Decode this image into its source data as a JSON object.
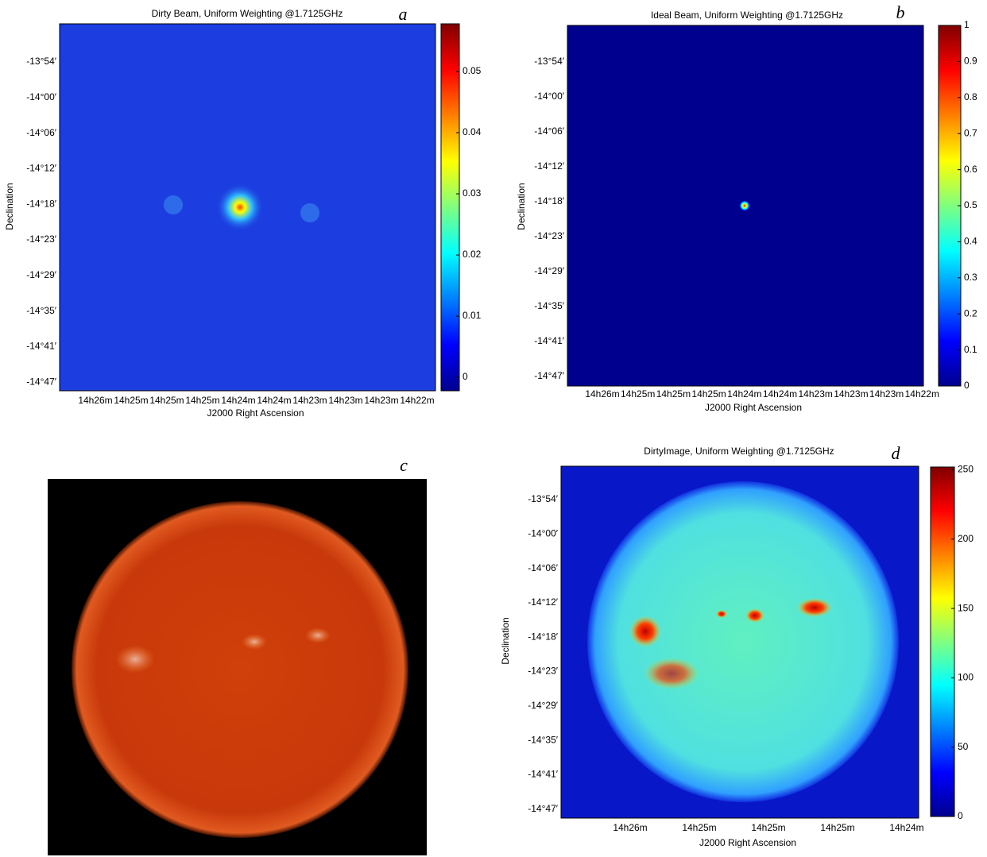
{
  "chart_data": [
    {
      "type": "heatmap",
      "panel_label": "a",
      "title": "Dirty Beam, Uniform Weighting @1.7125GHz",
      "xlabel": "J2000 Right Ascension",
      "ylabel": "Declination",
      "xtick_labels": [
        "14h26m",
        "14h25m",
        "14h25m",
        "14h25m",
        "14h24m",
        "14h24m",
        "14h23m",
        "14h23m",
        "14h23m",
        "14h22m"
      ],
      "ytick_labels": [
        "-13°54′",
        "-14°00′",
        "-14°06′",
        "-14°12′",
        "-14°18′",
        "-14°23′",
        "-14°29′",
        "-14°35′",
        "-14°41′",
        "-14°47′"
      ],
      "clim": [
        -0.0022,
        0.0578
      ],
      "cticks": [
        0,
        0.01,
        0.02,
        0.03,
        0.04,
        0.05
      ],
      "colormap": "jet"
    },
    {
      "type": "heatmap",
      "panel_label": "b",
      "title": "Ideal Beam, Uniform Weighting @1.7125GHz",
      "xlabel": "J2000 Right Ascension",
      "ylabel": "Declination",
      "xtick_labels": [
        "14h26m",
        "14h25m",
        "14h25m",
        "14h25m",
        "14h24m",
        "14h24m",
        "14h23m",
        "14h23m",
        "14h23m",
        "14h22m"
      ],
      "ytick_labels": [
        "-13°54′",
        "-14°00′",
        "-14°06′",
        "-14°12′",
        "-14°18′",
        "-14°23′",
        "-14°29′",
        "-14°35′",
        "-14°41′",
        "-14°47′"
      ],
      "clim": [
        0,
        1
      ],
      "cticks": [
        0,
        0.1,
        0.2,
        0.3,
        0.4,
        0.5,
        0.6,
        0.7,
        0.8,
        0.9,
        1
      ],
      "colormap": "jet"
    },
    {
      "type": "image",
      "panel_label": "c"
    },
    {
      "type": "heatmap",
      "panel_label": "d",
      "title": "DirtyImage, Uniform Weighting @1.7125GHz",
      "xlabel": "J2000 Right Ascension",
      "ylabel": "Declination",
      "xtick_labels": [
        "14h26m",
        "14h25m",
        "14h25m",
        "14h25m",
        "14h24m"
      ],
      "ytick_labels": [
        "-13°54′",
        "-14°00′",
        "-14°06′",
        "-14°12′",
        "-14°18′",
        "-14°23′",
        "-14°29′",
        "-14°35′",
        "-14°41′",
        "-14°47′"
      ],
      "clim": [
        0,
        252
      ],
      "cticks": [
        0,
        50,
        100,
        150,
        200,
        250
      ],
      "colormap": "jet"
    }
  ]
}
